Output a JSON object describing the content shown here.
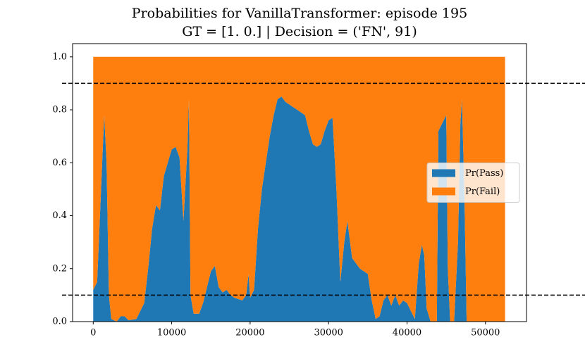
{
  "chart_data": {
    "type": "stacked-area",
    "title": [
      "Probabilities for VanillaTransformer: episode 195",
      "GT = [1. 0.] | Decision = ('FN', 91)"
    ],
    "x": [
      0,
      500,
      1000,
      1400,
      1700,
      2000,
      2300,
      3000,
      3500,
      4000,
      4500,
      5500,
      6000,
      6500,
      7000,
      7500,
      8000,
      8500,
      9000,
      9500,
      10000,
      10500,
      11000,
      11500,
      12000,
      12200,
      12400,
      12800,
      13500,
      14000,
      14500,
      15000,
      15500,
      16000,
      16500,
      17000,
      17500,
      18000,
      19000,
      19500,
      19800,
      20000,
      20500,
      21000,
      21500,
      22000,
      22500,
      23000,
      23500,
      24000,
      24500,
      25000,
      26000,
      27000,
      27500,
      28000,
      28500,
      29000,
      29500,
      30000,
      30500,
      31000,
      31500,
      32000,
      32400,
      33000,
      33500,
      34000,
      35000,
      35500,
      36000,
      36500,
      37000,
      37500,
      38000,
      38500,
      39000,
      39500,
      40000,
      40500,
      41000,
      41500,
      41900,
      42200,
      42500,
      43000,
      43800,
      44000,
      44500,
      45000,
      45200,
      45500,
      46000,
      46500,
      46800,
      47000,
      47300,
      47600,
      48000,
      50000,
      52500
    ],
    "series": [
      {
        "name": "Pr(Pass)",
        "color": "#1f77b4",
        "values": [
          0.12,
          0.15,
          0.5,
          0.78,
          0.6,
          0.1,
          0.01,
          0,
          0.02,
          0.02,
          0.005,
          0.01,
          0.04,
          0.07,
          0.2,
          0.35,
          0.44,
          0.42,
          0.55,
          0.6,
          0.65,
          0.66,
          0.62,
          0.38,
          0.65,
          0.84,
          0.1,
          0.03,
          0.03,
          0.07,
          0.13,
          0.19,
          0.21,
          0.13,
          0.11,
          0.12,
          0.1,
          0.09,
          0.08,
          0.1,
          0.18,
          0.09,
          0.12,
          0.35,
          0.5,
          0.6,
          0.7,
          0.78,
          0.84,
          0.85,
          0.83,
          0.82,
          0.8,
          0.78,
          0.72,
          0.67,
          0.66,
          0.67,
          0.72,
          0.76,
          0.77,
          0.5,
          0.15,
          0.3,
          0.38,
          0.24,
          0.22,
          0.2,
          0.18,
          0.08,
          0.01,
          0.02,
          0.08,
          0.1,
          0.06,
          0.1,
          0.06,
          0.08,
          0.07,
          0.04,
          0.01,
          0.22,
          0.29,
          0.25,
          0.05,
          0,
          0,
          0.72,
          0.75,
          0.78,
          0.2,
          0,
          0,
          0.3,
          0.75,
          0.84,
          0.5,
          0,
          0,
          0,
          0
        ]
      },
      {
        "name": "Pr(Fail)",
        "color": "#ff7f0e",
        "values": [
          0.88,
          0.85,
          0.5,
          0.22,
          0.4,
          0.9,
          0.99,
          1,
          0.98,
          0.98,
          0.995,
          0.99,
          0.96,
          0.93,
          0.8,
          0.65,
          0.56,
          0.58,
          0.45,
          0.4,
          0.35,
          0.34,
          0.38,
          0.62,
          0.35,
          0.16,
          0.9,
          0.97,
          0.97,
          0.93,
          0.87,
          0.81,
          0.79,
          0.87,
          0.89,
          0.88,
          0.9,
          0.91,
          0.92,
          0.9,
          0.82,
          0.91,
          0.88,
          0.65,
          0.5,
          0.4,
          0.3,
          0.22,
          0.16,
          0.15,
          0.17,
          0.18,
          0.2,
          0.22,
          0.28,
          0.33,
          0.34,
          0.33,
          0.28,
          0.24,
          0.23,
          0.5,
          0.85,
          0.7,
          0.62,
          0.76,
          0.78,
          0.8,
          0.82,
          0.92,
          0.99,
          0.98,
          0.92,
          0.9,
          0.94,
          0.9,
          0.94,
          0.92,
          0.93,
          0.96,
          0.99,
          0.78,
          0.71,
          0.75,
          0.95,
          1,
          1,
          0.28,
          0.25,
          0.22,
          0.8,
          1,
          1,
          0.7,
          0.25,
          0.16,
          0.5,
          1,
          1,
          1,
          1
        ]
      }
    ],
    "xlim": [
      -2630,
      55230
    ],
    "xticks": [
      0,
      10000,
      20000,
      30000,
      40000,
      50000
    ],
    "ylim": [
      0,
      1.05
    ],
    "yticks": [
      {
        "value": 0,
        "label": "0.0"
      },
      0.2,
      0.4,
      0.6,
      0.8,
      {
        "value": 1,
        "label": "1.0"
      }
    ],
    "reference_lines": [
      0.9,
      0.1
    ],
    "legend": "center right"
  }
}
